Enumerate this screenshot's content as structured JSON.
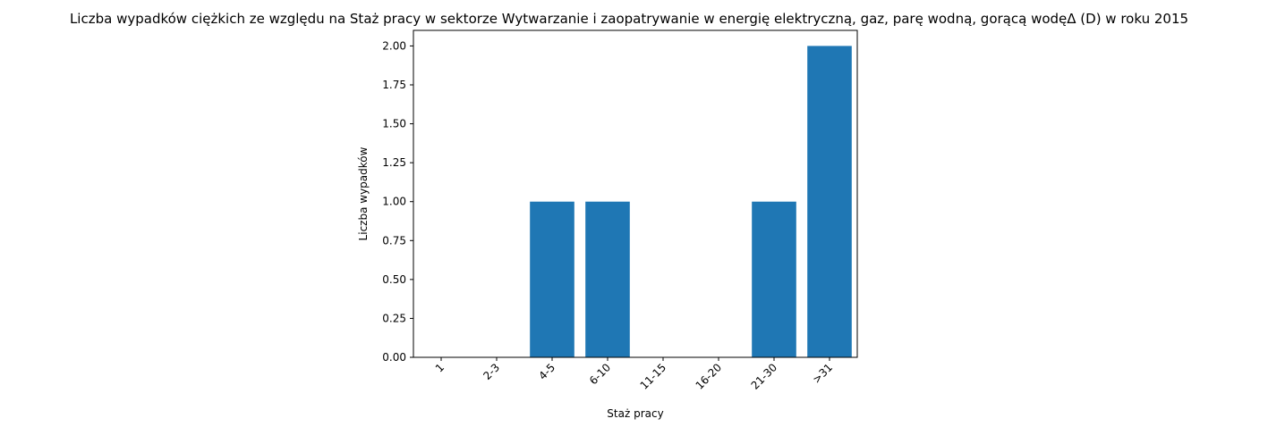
{
  "chart_data": {
    "type": "bar",
    "title": "Liczba wypadków ciężkich ze względu na Staż pracy w sektorze Wytwarzanie i zaopatrywanie w energię elektryczną, gaz, parę wodną, gorącą wodęΔ  (D) w roku 2015",
    "xlabel": "Staż pracy",
    "ylabel": "Liczba wypadków",
    "categories": [
      "1",
      "2-3",
      "4-5",
      "6-10",
      "11-15",
      "16-20",
      "21-30",
      ">31"
    ],
    "values": [
      0,
      0,
      1,
      1,
      0,
      0,
      1,
      2
    ],
    "ylim": [
      0,
      2.1
    ],
    "yticks": [
      "0.00",
      "0.25",
      "0.50",
      "0.75",
      "1.00",
      "1.25",
      "1.50",
      "1.75",
      "2.00"
    ],
    "bar_color": "#1f77b4",
    "grid": false
  }
}
